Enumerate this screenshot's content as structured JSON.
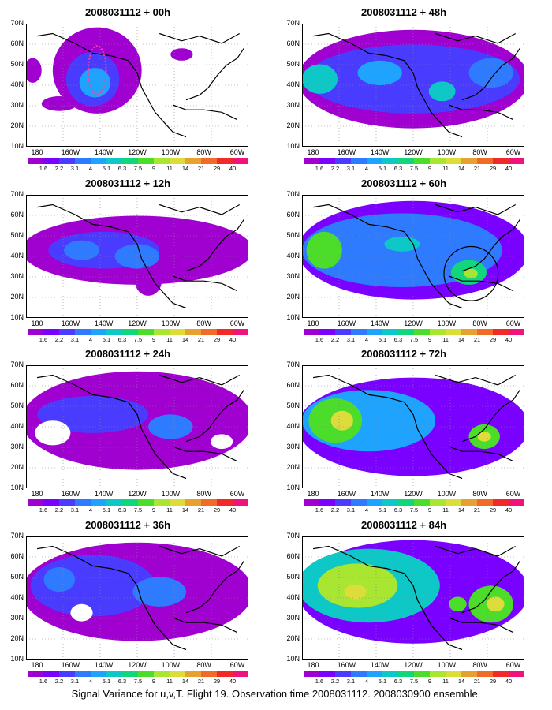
{
  "panels": [
    {
      "title": "2008031112 + 00h"
    },
    {
      "title": "2008031112 + 48h"
    },
    {
      "title": "2008031112 + 12h"
    },
    {
      "title": "2008031112 + 60h"
    },
    {
      "title": "2008031112 + 24h"
    },
    {
      "title": "2008031112 + 72h"
    },
    {
      "title": "2008031112 + 36h"
    },
    {
      "title": "2008031112 + 84h"
    }
  ],
  "lat_labels": [
    "70N",
    "60N",
    "50N",
    "40N",
    "30N",
    "20N",
    "10N"
  ],
  "lon_labels": [
    "180",
    "160W",
    "140W",
    "120W",
    "100W",
    "80W",
    "60W"
  ],
  "colorbar": {
    "levels": [
      "1.6",
      "2.2",
      "3.1",
      "4",
      "5.1",
      "6.3",
      "7.5",
      "9",
      "11",
      "14",
      "21",
      "29",
      "40"
    ],
    "colors": [
      "#a000d0",
      "#7a00ff",
      "#4a3cff",
      "#2f7bff",
      "#1ea3ff",
      "#0ec8c8",
      "#12d67e",
      "#4cdc2a",
      "#a8e632",
      "#dcdc3a",
      "#e8a030",
      "#f06a28",
      "#f02a2a",
      "#f0147a"
    ]
  },
  "caption": "Signal Variance for u,v,T. Flight 19. Observation time 2008031112. 2008030900 ensemble."
}
